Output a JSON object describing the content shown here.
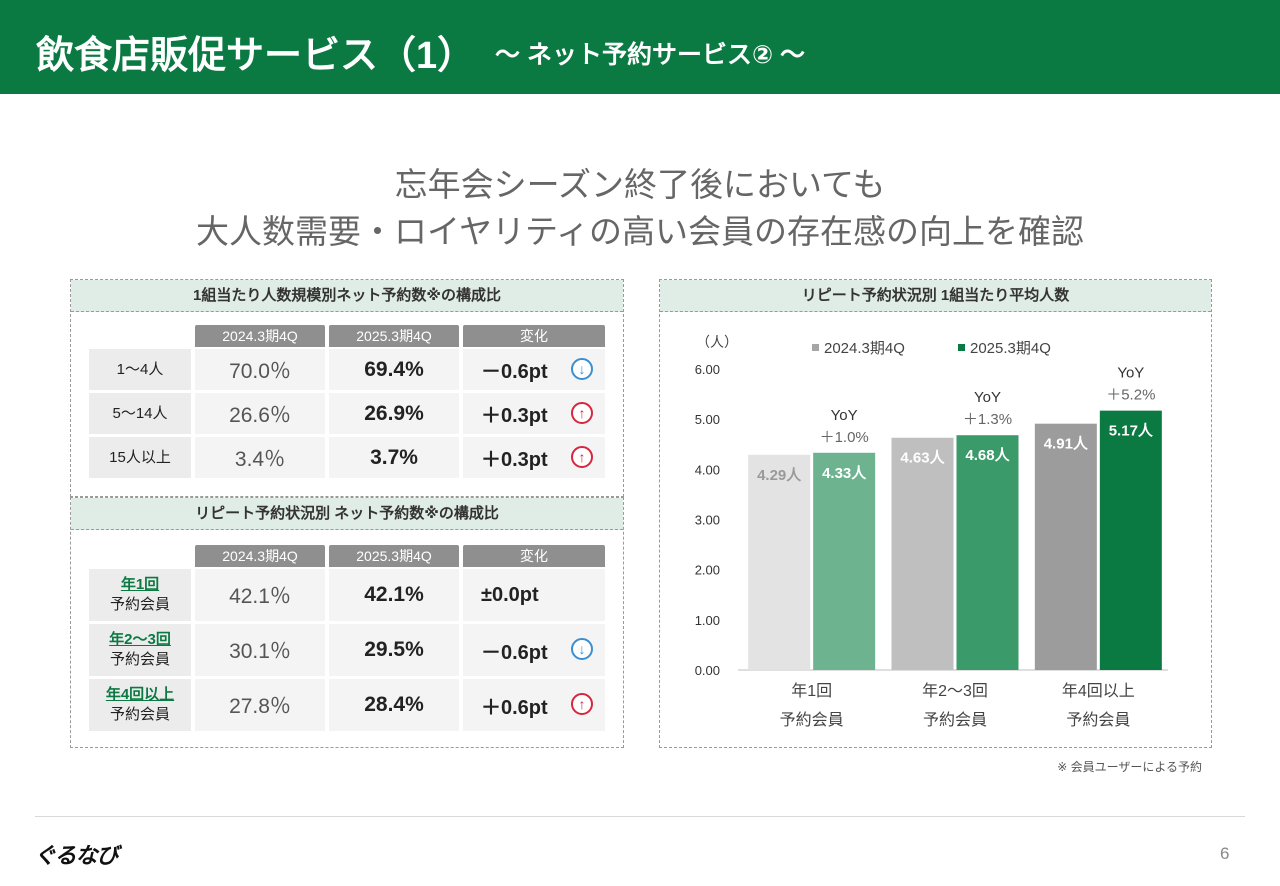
{
  "header": {
    "title": "飲食店販促サービス（1）",
    "subtitle": "～ ネット予約サービス② ～"
  },
  "headline": {
    "line1": "忘年会シーズン終了後においても",
    "line2": "大人数需要・ロイヤリティの高い会員の存在感の向上を確認"
  },
  "colors": {
    "brand_green": "#0a7a42",
    "up_red": "#d7263d",
    "down_blue": "#3b8ed0"
  },
  "table1": {
    "title": "1組当たり人数規模別ネット予約数※の構成比",
    "columns": [
      "2024.3期4Q",
      "2025.3期4Q",
      "変化"
    ],
    "rows": [
      {
        "label": "1～4人",
        "prev": "70.0％",
        "cur": "69.4%",
        "change": "－0.6pt",
        "arrow": "down-arrow-icon"
      },
      {
        "label": "5～14人",
        "prev": "26.6％",
        "cur": "26.9%",
        "change": "＋0.3pt",
        "arrow": "up-arrow-icon"
      },
      {
        "label": "15人以上",
        "prev": "3.4％",
        "cur": "3.7%",
        "change": "＋0.3pt",
        "arrow": "up-arrow-icon"
      }
    ]
  },
  "table2": {
    "title": "リピート予約状況別 ネット予約数※の構成比",
    "columns": [
      "2024.3期4Q",
      "2025.3期4Q",
      "変化"
    ],
    "rows": [
      {
        "label_top": "年1回",
        "label_bottom": "予約会員",
        "prev": "42.1％",
        "cur": "42.1%",
        "change": "±0.0pt",
        "arrow": ""
      },
      {
        "label_top": "年2～3回",
        "label_bottom": "予約会員",
        "prev": "30.1％",
        "cur": "29.5%",
        "change": "－0.6pt",
        "arrow": "down-arrow-icon"
      },
      {
        "label_top": "年4回以上",
        "label_bottom": "予約会員",
        "prev": "27.8％",
        "cur": "28.4%",
        "change": "＋0.6pt",
        "arrow": "up-arrow-icon"
      }
    ]
  },
  "chart_panel_title": "リピート予約状況別 1組当たり平均人数",
  "chart_data": {
    "type": "bar",
    "ylabel": "（人）",
    "ylim": [
      0,
      6
    ],
    "yticks": [
      "0.00",
      "1.00",
      "2.00",
      "3.00",
      "4.00",
      "5.00",
      "6.00"
    ],
    "categories": [
      [
        "年1回",
        "予約会員"
      ],
      [
        "年2～3回",
        "予約会員"
      ],
      [
        "年4回以上",
        "予約会員"
      ]
    ],
    "series": [
      {
        "name": "2024.3期4Q",
        "values": [
          4.29,
          4.63,
          4.91
        ],
        "labels": [
          "4.29人",
          "4.63人",
          "4.91人"
        ],
        "colors": [
          "#e3e3e3",
          "#bfbfbf",
          "#9c9c9c"
        ],
        "label_colors": [
          "#9a9a9a",
          "#ffffff",
          "#ffffff"
        ]
      },
      {
        "name": "2025.3期4Q",
        "values": [
          4.33,
          4.68,
          5.17
        ],
        "labels": [
          "4.33人",
          "4.68人",
          "5.17人"
        ],
        "colors": [
          "#6db38f",
          "#3a9a6a",
          "#0a7a42"
        ],
        "label_colors": [
          "#ffffff",
          "#ffffff",
          "#ffffff"
        ]
      }
    ],
    "legend_colors": [
      "#a6a6a6",
      "#0a7a42"
    ],
    "annotations": [
      [
        "YoY",
        "＋1.0%"
      ],
      [
        "YoY",
        "＋1.3%"
      ],
      [
        "YoY",
        "＋5.2%"
      ]
    ],
    "legend_position": "top"
  },
  "footnote": "※ 会員ユーザーによる予約",
  "logo": "ぐるなび",
  "page_number": "6"
}
